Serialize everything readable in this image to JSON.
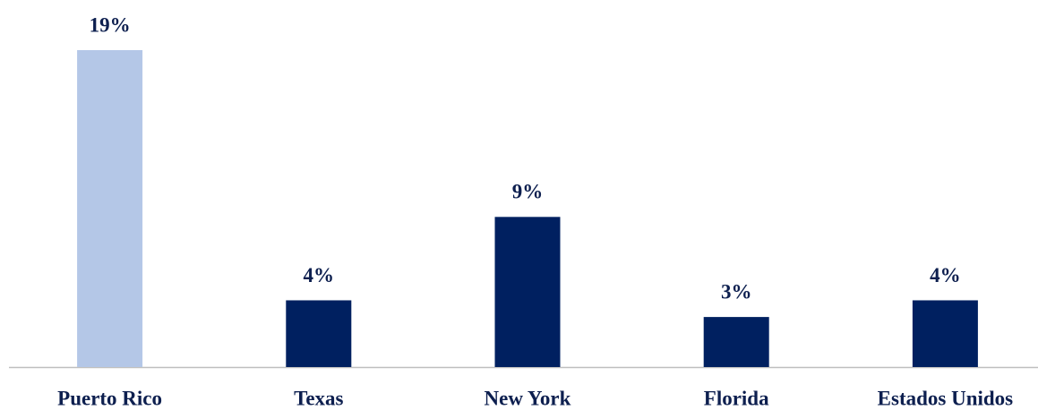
{
  "chart_data": {
    "type": "bar",
    "categories": [
      "Puerto Rico",
      "Texas",
      "New York",
      "Florida",
      "Estados Unidos"
    ],
    "values": [
      19,
      4,
      9,
      3,
      4
    ],
    "value_labels": [
      "19%",
      "4%",
      "9%",
      "3%",
      "4%"
    ],
    "colors": [
      "#b4c7e7",
      "#002060",
      "#002060",
      "#002060",
      "#002060"
    ]
  }
}
